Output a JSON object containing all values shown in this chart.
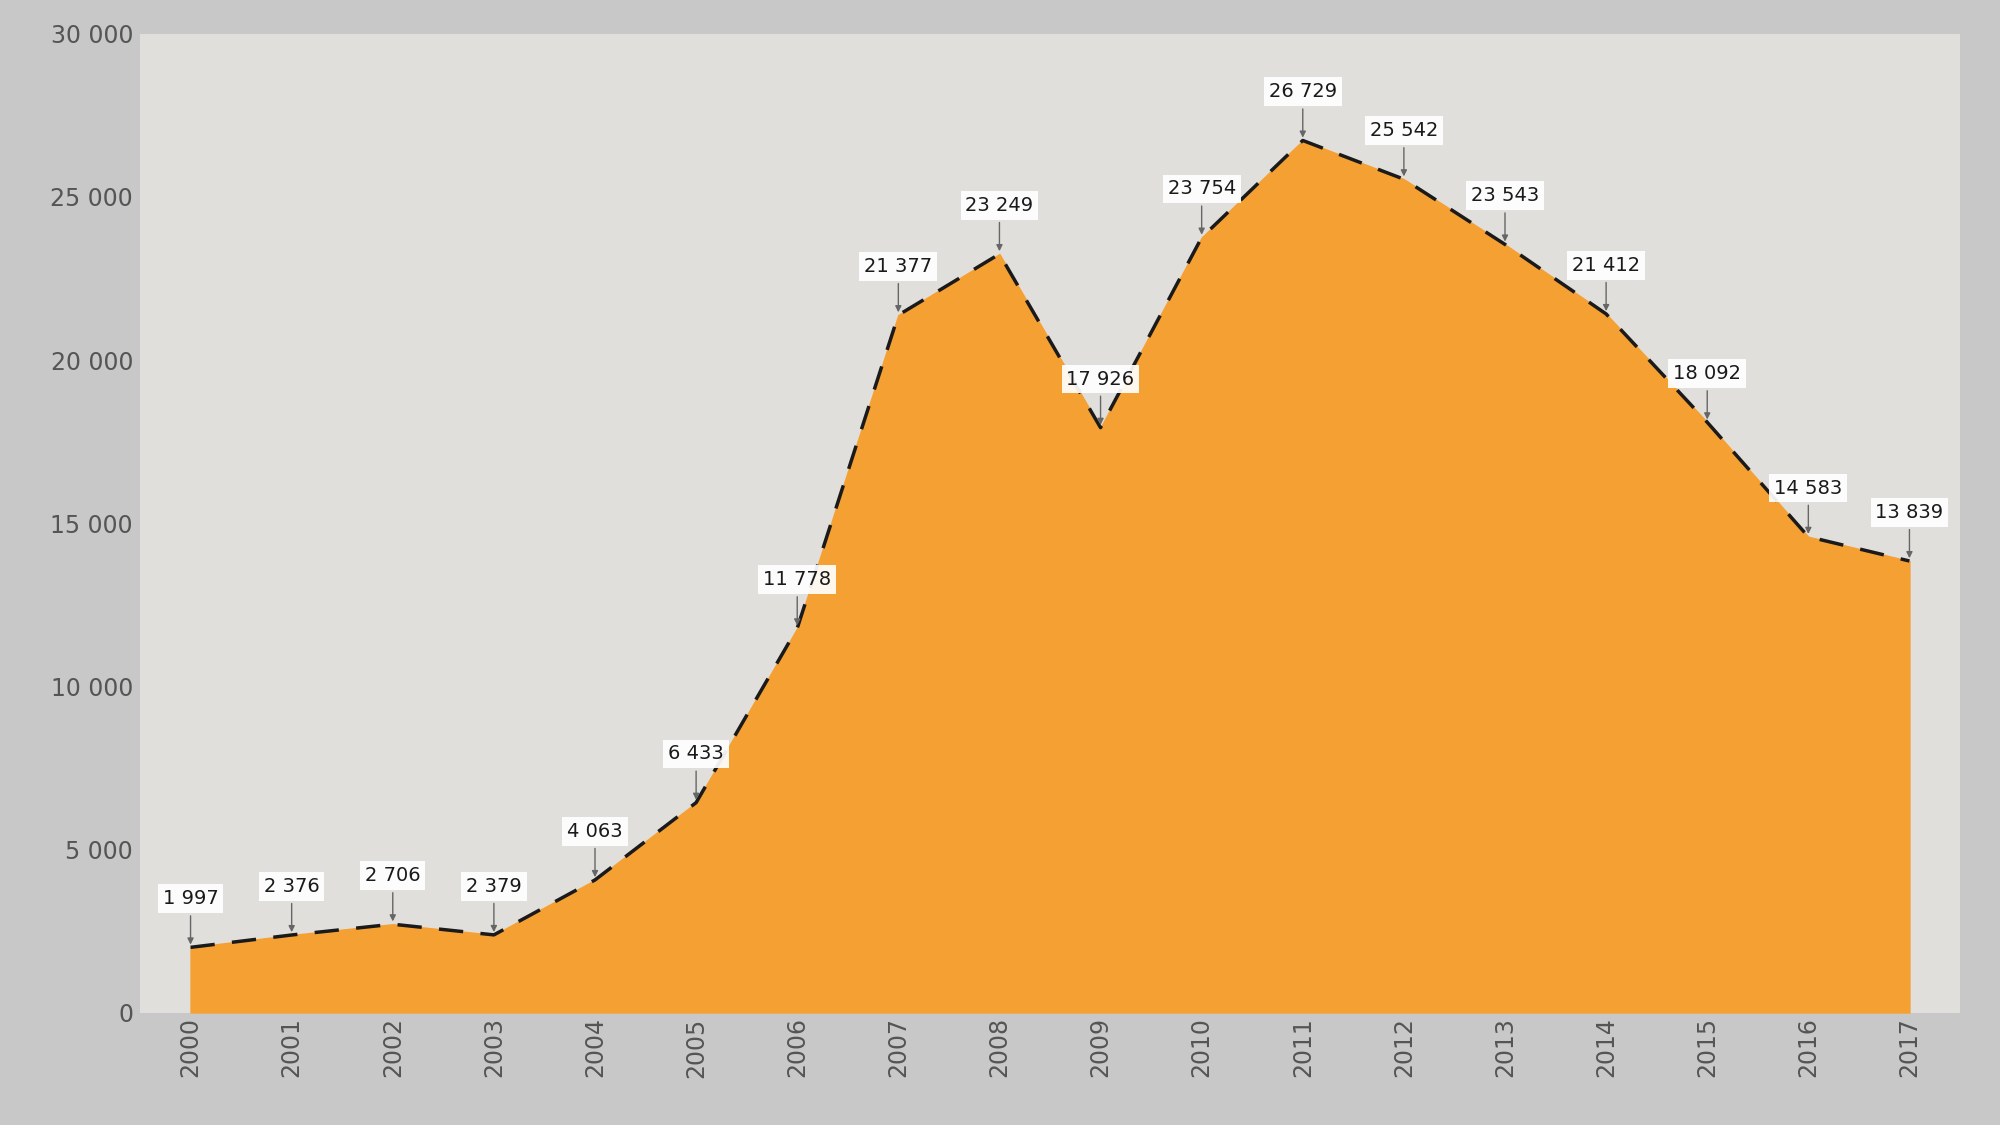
{
  "years": [
    2000,
    2001,
    2002,
    2003,
    2004,
    2005,
    2006,
    2007,
    2008,
    2009,
    2010,
    2011,
    2012,
    2013,
    2014,
    2015,
    2016,
    2017
  ],
  "values": [
    1997,
    2376,
    2706,
    2379,
    4063,
    6433,
    11778,
    21377,
    23249,
    17926,
    23754,
    26729,
    25542,
    23543,
    21412,
    18092,
    14583,
    13839
  ],
  "fill_color": "#F5A033",
  "line_color": "#1a1a1a",
  "background_color": "#c8c8c8",
  "plot_bg_color": "#e0e0e0",
  "ylim": [
    0,
    30000
  ],
  "yticks": [
    0,
    5000,
    10000,
    15000,
    20000,
    25000,
    30000
  ],
  "ytick_labels": [
    "0",
    "5 000",
    "10 000",
    "15 000",
    "20 000",
    "25 000",
    "30 000"
  ],
  "annotation_color": "#1a1a1a",
  "annotation_bg": "#ffffff",
  "tick_fontsize": 17,
  "annot_fontsize": 14,
  "value_labels": [
    "1 997",
    "2 376",
    "2 706",
    "2 379",
    "4 063",
    "6 433",
    "11 778",
    "21 377",
    "23 249",
    "17 926",
    "23 754",
    "26 729",
    "25 542",
    "23 543",
    "21 412",
    "18 092",
    "14 583",
    "13 839"
  ]
}
